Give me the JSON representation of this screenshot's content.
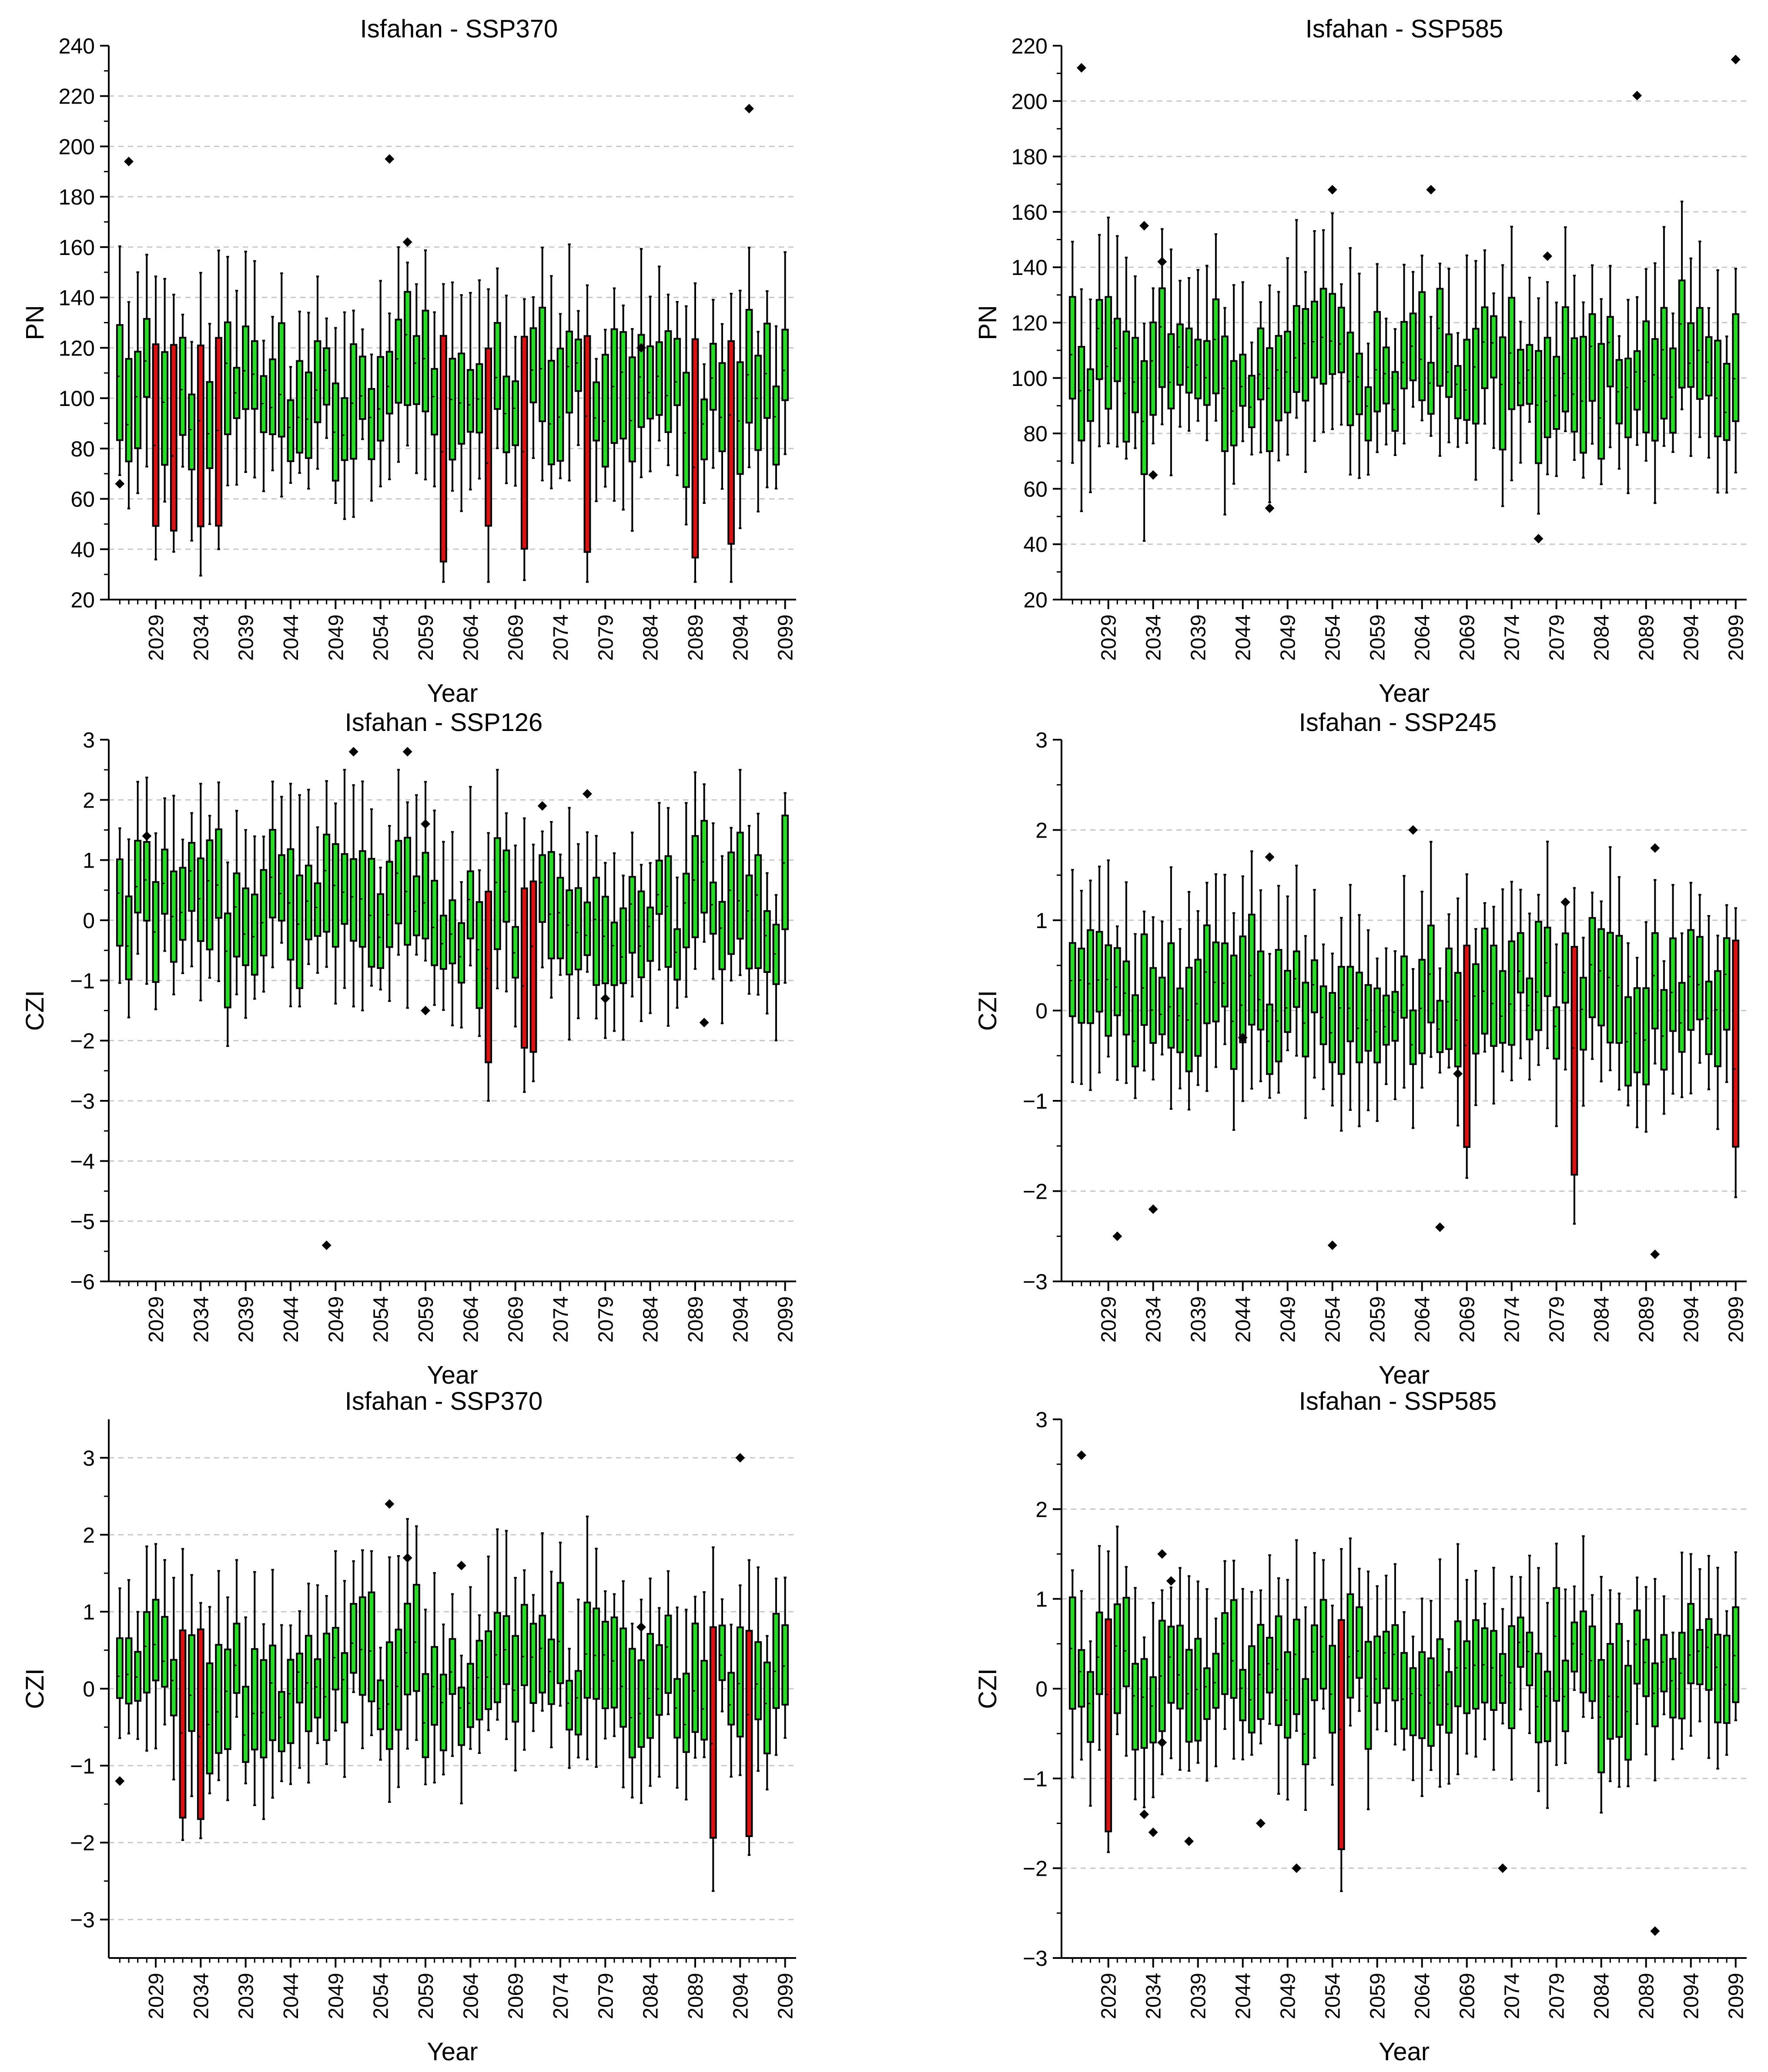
{
  "colors": {
    "normal": "#22dd22",
    "low": "#dd1111",
    "grid": "#c8c8c8",
    "axis": "#000000"
  },
  "panel_titles": [
    "Isfahan - SSP370",
    "Isfahan - SSP585",
    "Isfahan - SSP126",
    "Isfahan - SSP245",
    "Isfahan - SSP370",
    "Isfahan - SSP585"
  ],
  "chart_data": [
    {
      "type": "box",
      "title": "Isfahan - SSP370",
      "xlabel": "Year",
      "ylabel": "PN",
      "ylim": [
        20,
        240
      ],
      "yticks": [
        20,
        40,
        60,
        80,
        100,
        120,
        140,
        160,
        180,
        200,
        220,
        240
      ],
      "grid": true,
      "years": [
        2025,
        2099
      ],
      "xticks": [
        "2029",
        "2034",
        "2039",
        "2044",
        "2049",
        "2054",
        "2059",
        "2064",
        "2069",
        "2074",
        "2079",
        "2084",
        "2089",
        "2094",
        "2099"
      ],
      "low_years": [
        2029,
        2031,
        2034,
        2036,
        2061,
        2066,
        2070,
        2077,
        2089,
        2093
      ],
      "annotated_outliers": [
        [
          2025,
          66
        ],
        [
          2026,
          194
        ],
        [
          2055,
          195
        ],
        [
          2057,
          162
        ],
        [
          2083,
          120
        ],
        [
          2095,
          215
        ]
      ],
      "whisker_range": [
        27,
        230
      ]
    },
    {
      "type": "box",
      "title": "Isfahan - SSP585",
      "xlabel": "Year",
      "ylabel": "PN",
      "ylim": [
        20,
        220
      ],
      "yticks": [
        20,
        40,
        60,
        80,
        100,
        120,
        140,
        160,
        180,
        200,
        220
      ],
      "grid": true,
      "years": [
        2025,
        2099
      ],
      "xticks": [
        "2029",
        "2034",
        "2039",
        "2044",
        "2049",
        "2054",
        "2059",
        "2064",
        "2069",
        "2074",
        "2079",
        "2084",
        "2089",
        "2094",
        "2099"
      ],
      "low_years": [],
      "annotated_outliers": [
        [
          2026,
          212
        ],
        [
          2033,
          155
        ],
        [
          2034,
          65
        ],
        [
          2035,
          142
        ],
        [
          2047,
          53
        ],
        [
          2054,
          168
        ],
        [
          2065,
          168
        ],
        [
          2077,
          42
        ],
        [
          2078,
          144
        ],
        [
          2088,
          202
        ],
        [
          2099,
          215
        ]
      ],
      "whisker_range": [
        27,
        215
      ]
    },
    {
      "type": "box",
      "title": "Isfahan - SSP126",
      "xlabel": "Year",
      "ylabel": "CZI",
      "ylim": [
        -6,
        3
      ],
      "yticks": [
        -6,
        -5,
        -4,
        -3,
        -2,
        -1,
        0,
        1,
        2,
        3
      ],
      "grid": true,
      "years": [
        2025,
        2099
      ],
      "xticks": [
        "2029",
        "2034",
        "2039",
        "2044",
        "2049",
        "2054",
        "2059",
        "2064",
        "2069",
        "2074",
        "2079",
        "2084",
        "2089",
        "2094",
        "2099"
      ],
      "low_years": [
        2066,
        2070,
        2071
      ],
      "annotated_outliers": [
        [
          2028,
          1.4
        ],
        [
          2048,
          -5.4
        ],
        [
          2051,
          2.8
        ],
        [
          2057,
          2.8
        ],
        [
          2059,
          1.6
        ],
        [
          2059,
          -1.5
        ],
        [
          2072,
          1.9
        ],
        [
          2077,
          2.1
        ],
        [
          2079,
          -1.3
        ],
        [
          2090,
          -1.7
        ]
      ],
      "whisker_range": [
        -3.0,
        2.5
      ]
    },
    {
      "type": "box",
      "title": "Isfahan - SSP245",
      "xlabel": "Year",
      "ylabel": "CZI",
      "ylim": [
        -3,
        3
      ],
      "yticks": [
        -3,
        -2,
        -1,
        0,
        1,
        2,
        3
      ],
      "grid": true,
      "years": [
        2025,
        2099
      ],
      "xticks": [
        "2029",
        "2034",
        "2039",
        "2044",
        "2049",
        "2054",
        "2059",
        "2064",
        "2069",
        "2074",
        "2079",
        "2084",
        "2089",
        "2094",
        "2099"
      ],
      "low_years": [
        2069,
        2081,
        2099
      ],
      "annotated_outliers": [
        [
          2030,
          -2.5
        ],
        [
          2034,
          -2.2
        ],
        [
          2044,
          -0.3
        ],
        [
          2047,
          1.7
        ],
        [
          2054,
          -2.6
        ],
        [
          2063,
          2.0
        ],
        [
          2066,
          -2.4
        ],
        [
          2068,
          -0.7
        ],
        [
          2080,
          1.2
        ],
        [
          2090,
          1.8
        ],
        [
          2090,
          -2.7
        ]
      ],
      "whisker_range": [
        -2.5,
        3.0
      ]
    },
    {
      "type": "box",
      "title": "Isfahan - SSP370",
      "xlabel": "Year",
      "ylabel": "CZI",
      "ylim": [
        -3.5,
        3.5
      ],
      "yticks": [
        -3,
        -2,
        -1,
        0,
        1,
        2,
        3
      ],
      "grid": true,
      "years": [
        2025,
        2099
      ],
      "xticks": [
        "2029",
        "2034",
        "2039",
        "2044",
        "2049",
        "2054",
        "2059",
        "2064",
        "2069",
        "2074",
        "2079",
        "2084",
        "2089",
        "2094",
        "2099"
      ],
      "low_years": [
        2032,
        2034,
        2091,
        2095
      ],
      "annotated_outliers": [
        [
          2025,
          -1.2
        ],
        [
          2055,
          2.4
        ],
        [
          2057,
          1.7
        ],
        [
          2063,
          1.6
        ],
        [
          2083,
          0.8
        ],
        [
          2094,
          3.0
        ]
      ],
      "whisker_range": [
        -3.3,
        2.8
      ]
    },
    {
      "type": "box",
      "title": "Isfahan - SSP585",
      "xlabel": "Year",
      "ylabel": "CZI",
      "ylim": [
        -3,
        3
      ],
      "yticks": [
        -3,
        -2,
        -1,
        0,
        1,
        2,
        3
      ],
      "grid": true,
      "years": [
        2025,
        2099
      ],
      "xticks": [
        "2029",
        "2034",
        "2039",
        "2044",
        "2049",
        "2054",
        "2059",
        "2064",
        "2069",
        "2074",
        "2079",
        "2084",
        "2089",
        "2094",
        "2099"
      ],
      "low_years": [
        2029,
        2055
      ],
      "annotated_outliers": [
        [
          2026,
          2.6
        ],
        [
          2033,
          -1.4
        ],
        [
          2034,
          -1.6
        ],
        [
          2035,
          1.5
        ],
        [
          2036,
          1.2
        ],
        [
          2035,
          -0.6
        ],
        [
          2038,
          -1.7
        ],
        [
          2046,
          -1.5
        ],
        [
          2050,
          -2.0
        ],
        [
          2073,
          -2.0
        ],
        [
          2090,
          -2.7
        ]
      ],
      "whisker_range": [
        -2.6,
        2.5
      ]
    }
  ]
}
